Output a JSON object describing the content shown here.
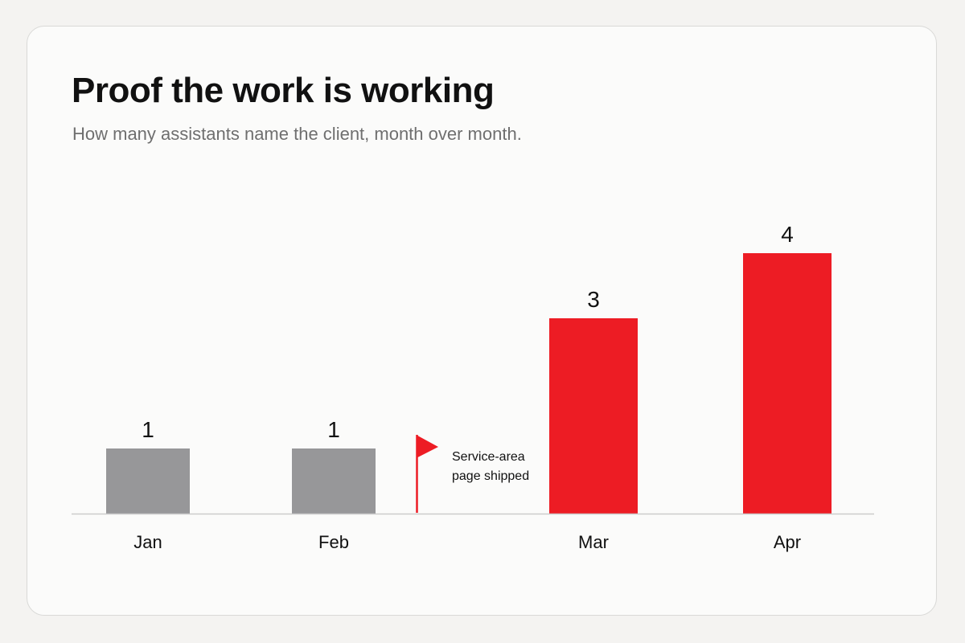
{
  "header": {
    "title": "Proof the work is working",
    "subtitle": "How many assistants name the client, month over month."
  },
  "chart_data": {
    "type": "bar",
    "title": "Proof the work is working",
    "subtitle": "How many assistants name the client, month over month.",
    "categories": [
      "Jan",
      "Feb",
      "Mar",
      "Apr"
    ],
    "values": [
      1,
      1,
      3,
      4
    ],
    "bar_colors": [
      "#979799",
      "#979799",
      "#ed1c24",
      "#ed1c24"
    ],
    "xlabel": "",
    "ylabel": "",
    "ylim": [
      0,
      4.6
    ],
    "grid": false,
    "legend": "none",
    "data_labels": true,
    "annotations": [
      {
        "type": "flag",
        "between": [
          "Feb",
          "Mar"
        ],
        "color": "#ed1c24",
        "lines": [
          "Service-area",
          "page shipped"
        ]
      }
    ]
  },
  "colors": {
    "background": "#f4f3f1",
    "card": "#fbfbfa",
    "baseline": "#cccccc",
    "text": "#111111",
    "muted": "#6f6f6f"
  }
}
